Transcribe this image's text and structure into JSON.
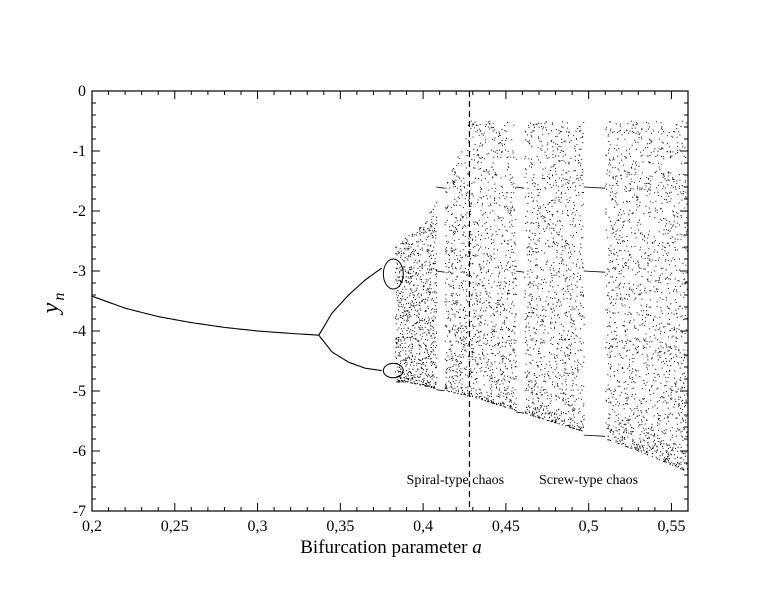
{
  "chart_data": {
    "type": "scatter",
    "title": "",
    "xlabel": "Bifurcation parameter",
    "xlabel_italic": "a",
    "ylabel": "y",
    "ylabel_subscript": "n",
    "xlim": [
      0.2,
      0.56
    ],
    "ylim": [
      -7,
      0
    ],
    "x_ticks": [
      0.2,
      0.25,
      0.3,
      0.35,
      0.4,
      0.45,
      0.5,
      0.55
    ],
    "x_tick_labels": [
      "0,2",
      "0,25",
      "0,3",
      "0,35",
      "0,4",
      "0,45",
      "0,5",
      "0,55"
    ],
    "y_ticks": [
      0,
      -1,
      -2,
      -3,
      -4,
      -5,
      -6,
      -7
    ],
    "y_tick_labels": [
      "0",
      "-1",
      "-2",
      "-3",
      "-4",
      "-5",
      "-6",
      "-7"
    ],
    "grid": false,
    "legend": "none",
    "marker_color": "#000000",
    "series": [
      {
        "description": "period-1 branch",
        "x": [
          0.2,
          0.22,
          0.24,
          0.26,
          0.28,
          0.3,
          0.32,
          0.337
        ],
        "y": [
          -3.42,
          -3.62,
          -3.76,
          -3.86,
          -3.94,
          -4.0,
          -4.04,
          -4.07
        ]
      },
      {
        "description": "period-2 upper branch",
        "x": [
          0.337,
          0.345,
          0.355,
          0.365,
          0.375
        ],
        "y": [
          -4.07,
          -3.7,
          -3.4,
          -3.15,
          -2.95
        ]
      },
      {
        "description": "period-2 lower branch",
        "x": [
          0.337,
          0.345,
          0.355,
          0.365,
          0.375
        ],
        "y": [
          -4.07,
          -4.35,
          -4.52,
          -4.62,
          -4.66
        ]
      },
      {
        "description": "lower envelope of attractor",
        "x": [
          0.39,
          0.43,
          0.47,
          0.5,
          0.53,
          0.56
        ],
        "y": [
          -4.85,
          -5.1,
          -5.45,
          -5.7,
          -6.0,
          -6.35
        ]
      },
      {
        "description": "upper envelope of attractor",
        "x": [
          0.385,
          0.4,
          0.415,
          0.428,
          0.44,
          0.56
        ],
        "y": [
          -2.55,
          -2.2,
          -1.5,
          -0.5,
          -0.5,
          -0.5
        ]
      }
    ],
    "periodic_windows_x": [
      [
        0.408,
        0.413
      ],
      [
        0.456,
        0.461
      ],
      [
        0.497,
        0.51
      ]
    ],
    "divider": {
      "x": 0.428,
      "style": "dashed"
    },
    "annotations": [
      {
        "text": "Spiral-type chaos",
        "x": 0.39,
        "y": -6.55
      },
      {
        "text": "Screw-type chaos",
        "x": 0.47,
        "y": -6.55
      }
    ]
  }
}
